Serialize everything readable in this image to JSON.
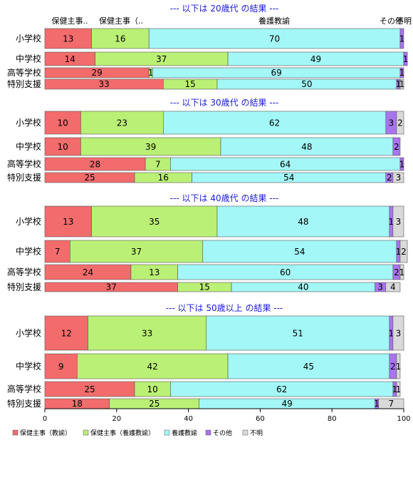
{
  "chart_data": {
    "type": "bar",
    "orientation": "horizontal-stacked-100",
    "xlim": [
      0,
      100
    ],
    "x_ticks": [
      "0",
      "20",
      "40",
      "60",
      "80",
      "100"
    ],
    "series_names": [
      "保健主事（教諭）",
      "保健主事（養護教諭）",
      "養護教諭",
      "その他",
      "不明"
    ],
    "colors": [
      "#f26c6c",
      "#baf075",
      "#a3f7f7",
      "#a974f0",
      "#d9d9d9"
    ],
    "column_headers": [
      "保健主事..",
      "保健主事（..",
      "養護教諭",
      "その他",
      "不明"
    ],
    "panels": [
      {
        "title": "--- 以下は 20歳代 の結果 ---",
        "rows": [
          {
            "label": "小学校",
            "values": [
              13,
              16,
              70,
              1,
              0
            ]
          },
          {
            "label": "中学校",
            "values": [
              14,
              37,
              49,
              1,
              0
            ]
          },
          {
            "label": "高等学校",
            "values": [
              29,
              1,
              69,
              1,
              0
            ]
          },
          {
            "label": "特別支援",
            "values": [
              33,
              15,
              50,
              1,
              1
            ]
          }
        ]
      },
      {
        "title": "--- 以下は 30歳代 の結果 ---",
        "rows": [
          {
            "label": "小学校",
            "values": [
              10,
              23,
              62,
              3,
              2
            ]
          },
          {
            "label": "中学校",
            "values": [
              10,
              39,
              48,
              2,
              0
            ]
          },
          {
            "label": "高等学校",
            "values": [
              28,
              7,
              64,
              1,
              0
            ]
          },
          {
            "label": "特別支援",
            "values": [
              25,
              16,
              54,
              2,
              3
            ]
          }
        ]
      },
      {
        "title": "--- 以下は 40歳代 の結果 ---",
        "rows": [
          {
            "label": "小学校",
            "values": [
              13,
              35,
              48,
              1,
              3
            ]
          },
          {
            "label": "中学校",
            "values": [
              7,
              37,
              54,
              1,
              2
            ]
          },
          {
            "label": "高等学校",
            "values": [
              24,
              13,
              60,
              2,
              1
            ]
          },
          {
            "label": "特別支援",
            "values": [
              37,
              15,
              40,
              3,
              4
            ]
          }
        ]
      },
      {
        "title": "--- 以下は 50歳以上 の結果 ---",
        "rows": [
          {
            "label": "小学校",
            "values": [
              12,
              33,
              51,
              1,
              3
            ]
          },
          {
            "label": "中学校",
            "values": [
              9,
              42,
              45,
              2,
              1
            ]
          },
          {
            "label": "高等学校",
            "values": [
              25,
              10,
              62,
              1,
              1
            ]
          },
          {
            "label": "特別支援",
            "values": [
              18,
              25,
              49,
              1,
              7
            ]
          }
        ]
      }
    ]
  }
}
